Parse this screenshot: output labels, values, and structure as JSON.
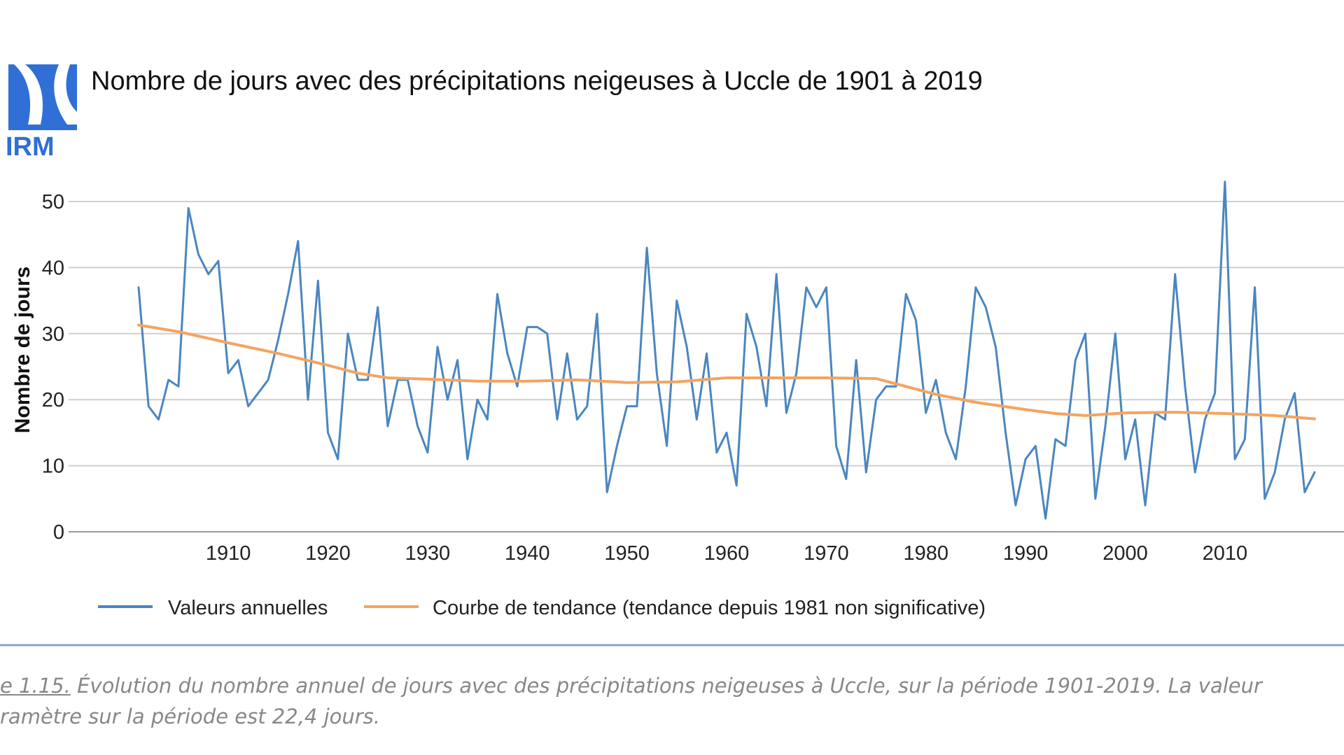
{
  "logo": {
    "text": "IRM",
    "color": "#2f6fd6"
  },
  "chart_data": {
    "type": "line",
    "title": "Nombre de jours avec des précipitations neigeuses à Uccle de 1901 à 2019",
    "xlabel": "",
    "ylabel": "Nombre de jours",
    "xlim": [
      1901,
      2019
    ],
    "ylim": [
      0,
      53
    ],
    "x_ticks": [
      1910,
      1920,
      1930,
      1940,
      1950,
      1960,
      1970,
      1980,
      1990,
      2000,
      2010
    ],
    "y_ticks": [
      0,
      10,
      20,
      30,
      40,
      50
    ],
    "grid": true,
    "legend_position": "bottom",
    "series": [
      {
        "name": "Valeurs annuelles",
        "color": "#4a86c0",
        "x": [
          1901,
          1902,
          1903,
          1904,
          1905,
          1906,
          1907,
          1908,
          1909,
          1910,
          1911,
          1912,
          1913,
          1914,
          1915,
          1916,
          1917,
          1918,
          1919,
          1920,
          1921,
          1922,
          1923,
          1924,
          1925,
          1926,
          1927,
          1928,
          1929,
          1930,
          1931,
          1932,
          1933,
          1934,
          1935,
          1936,
          1937,
          1938,
          1939,
          1940,
          1941,
          1942,
          1943,
          1944,
          1945,
          1946,
          1947,
          1948,
          1949,
          1950,
          1951,
          1952,
          1953,
          1954,
          1955,
          1956,
          1957,
          1958,
          1959,
          1960,
          1961,
          1962,
          1963,
          1964,
          1965,
          1966,
          1967,
          1968,
          1969,
          1970,
          1971,
          1972,
          1973,
          1974,
          1975,
          1976,
          1977,
          1978,
          1979,
          1980,
          1981,
          1982,
          1983,
          1984,
          1985,
          1986,
          1987,
          1988,
          1989,
          1990,
          1991,
          1992,
          1993,
          1994,
          1995,
          1996,
          1997,
          1998,
          1999,
          2000,
          2001,
          2002,
          2003,
          2004,
          2005,
          2006,
          2007,
          2008,
          2009,
          2010,
          2011,
          2012,
          2013,
          2014,
          2015,
          2016,
          2017,
          2018,
          2019
        ],
        "values": [
          37,
          19,
          17,
          23,
          22,
          49,
          42,
          39,
          41,
          24,
          26,
          19,
          21,
          23,
          29,
          36,
          44,
          20,
          38,
          15,
          11,
          30,
          23,
          23,
          34,
          16,
          23,
          23,
          16,
          12,
          28,
          20,
          26,
          11,
          20,
          17,
          36,
          27,
          22,
          31,
          31,
          30,
          17,
          27,
          17,
          19,
          33,
          6,
          13,
          19,
          19,
          43,
          24,
          13,
          35,
          28,
          17,
          27,
          12,
          15,
          7,
          33,
          28,
          19,
          39,
          18,
          24,
          37,
          34,
          37,
          13,
          8,
          26,
          9,
          20,
          22,
          22,
          36,
          32,
          18,
          23,
          15,
          11,
          22,
          37,
          34,
          28,
          15,
          4,
          11,
          13,
          2,
          14,
          13,
          26,
          30,
          5,
          16,
          30,
          11,
          17,
          4,
          18,
          17,
          39,
          22,
          9,
          17,
          21,
          53,
          11,
          14,
          37,
          5,
          9,
          17,
          21,
          6,
          9
        ]
      },
      {
        "name": "Courbe de tendance (tendance depuis 1981 non significative)",
        "color": "#f4a460",
        "x": [
          1901,
          1905,
          1910,
          1915,
          1920,
          1923,
          1926,
          1930,
          1935,
          1940,
          1945,
          1950,
          1955,
          1960,
          1965,
          1970,
          1975,
          1978,
          1981,
          1985,
          1990,
          1993,
          1996,
          2000,
          2005,
          2010,
          2015,
          2019
        ],
        "values": [
          31.3,
          30.3,
          28.6,
          27.0,
          25.2,
          24.0,
          23.3,
          23.1,
          22.8,
          22.8,
          23.0,
          22.6,
          22.7,
          23.3,
          23.3,
          23.3,
          23.2,
          22.0,
          20.8,
          19.6,
          18.5,
          17.9,
          17.6,
          18.0,
          18.1,
          17.9,
          17.6,
          17.1
        ]
      }
    ]
  },
  "caption": {
    "figure_ref": "e 1.15.",
    "line1_rest": " Évolution du nombre annuel de jours avec des précipitations neigeuses à Uccle, sur la période 1901-2019. La valeur",
    "line2": "ramètre sur la période est 22,4 jours."
  }
}
